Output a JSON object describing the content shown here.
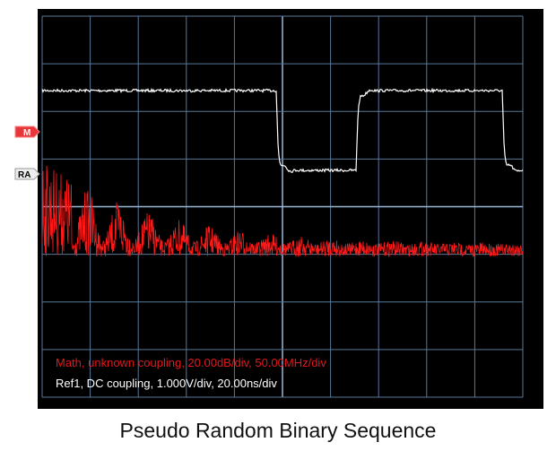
{
  "markers": {
    "math": "M",
    "ref": "RA"
  },
  "readouts": {
    "math": "Math, unknown coupling, 20.00dB/div, 50.00MHz/div",
    "ref": "Ref1, DC coupling, 1.000V/div, 20.00ns/div"
  },
  "caption": "Pseudo Random Binary Sequence"
}
